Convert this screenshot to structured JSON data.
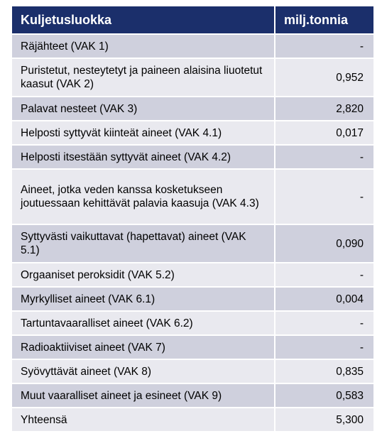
{
  "table": {
    "headers": [
      "Kuljetusluokka",
      "milj.tonnia"
    ],
    "rows": [
      {
        "label": "Räjähteet (VAK 1)",
        "value": "-"
      },
      {
        "label": "Puristetut, nesteytetyt ja paineen alaisina liuotetut kaasut (VAK 2)",
        "value": "0,952"
      },
      {
        "label": "Palavat nesteet (VAK 3)",
        "value": "2,820"
      },
      {
        "label": "Helposti syttyvät kiinteät aineet (VAK 4.1)",
        "value": "0,017"
      },
      {
        "label": "Helposti itsestään syttyvät aineet (VAK 4.2)",
        "value": "-"
      },
      {
        "label": "Aineet, jotka veden kanssa kosketukseen joutuessaan kehittävät palavia kaasuja (VAK 4.3)",
        "value": "-"
      },
      {
        "label": "Syttyvästi vaikuttavat (hapettavat) aineet (VAK 5.1)",
        "value": "0,090"
      },
      {
        "label": "Orgaaniset peroksidit (VAK 5.2)",
        "value": "-"
      },
      {
        "label": "Myrkylliset aineet (VAK 6.1)",
        "value": "0,004"
      },
      {
        "label": "Tartuntavaaralliset aineet (VAK 6.2)",
        "value": "-"
      },
      {
        "label": "Radioaktiiviset aineet (VAK 7)",
        "value": "-"
      },
      {
        "label": "Syövyttävät aineet (VAK 8)",
        "value": "0,835"
      },
      {
        "label": "Muut vaaralliset aineet ja esineet (VAK 9)",
        "value": "0,583"
      },
      {
        "label": "Yhteensä",
        "value": "5,300"
      }
    ]
  }
}
